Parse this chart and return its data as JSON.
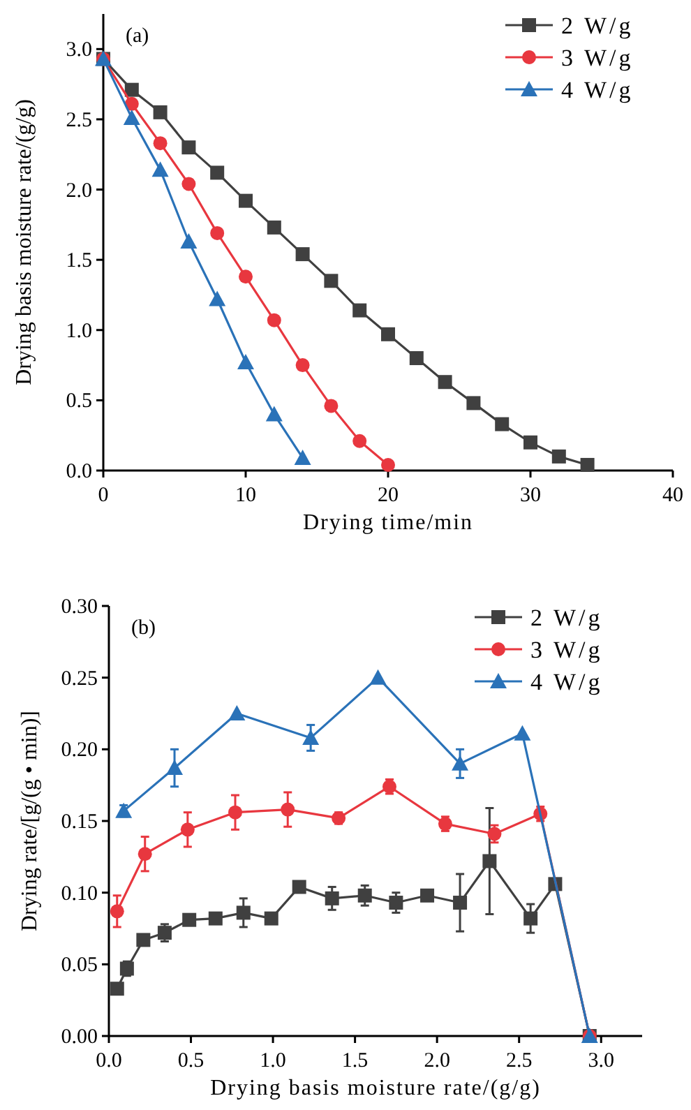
{
  "chart_data": [
    {
      "type": "line",
      "xlabel": "Drying time/min",
      "ylabel": "Drying basis moisture rate/(g/g)",
      "annotations": [
        "(a)"
      ],
      "xlim": [
        0,
        40
      ],
      "xticks": [
        0,
        10,
        20,
        30,
        40
      ],
      "ylim": [
        0,
        3.25
      ],
      "yticks": [
        {
          "value": 0,
          "label": "0.0"
        },
        {
          "value": 0.5,
          "label": "0.5"
        },
        {
          "value": 1,
          "label": "1.0"
        },
        {
          "value": 1.5,
          "label": "1.5"
        },
        {
          "value": 2,
          "label": "2.0"
        },
        {
          "value": 2.5,
          "label": "2.5"
        },
        {
          "value": 3,
          "label": "3.0"
        }
      ],
      "grid": false,
      "legend": "top right",
      "series": [
        {
          "name": "2 W/g",
          "color": "#404040",
          "marker": "square",
          "x": [
            0,
            2,
            4,
            6,
            8,
            10,
            12,
            14,
            16,
            18,
            20,
            22,
            24,
            26,
            28,
            30,
            32,
            34
          ],
          "values": [
            2.93,
            2.71,
            2.55,
            2.3,
            2.12,
            1.92,
            1.73,
            1.54,
            1.35,
            1.14,
            0.97,
            0.8,
            0.63,
            0.48,
            0.33,
            0.2,
            0.1,
            0.04
          ]
        },
        {
          "name": "3 W/g",
          "color": "#e8373f",
          "marker": "circle",
          "x": [
            0,
            2,
            4,
            6,
            8,
            10,
            12,
            14,
            16,
            18,
            20
          ],
          "values": [
            2.93,
            2.61,
            2.33,
            2.04,
            1.69,
            1.38,
            1.07,
            0.75,
            0.46,
            0.21,
            0.04
          ]
        },
        {
          "name": "4 W/g",
          "color": "#2a72b8",
          "marker": "triangle",
          "x": [
            0,
            2,
            4,
            6,
            8,
            10,
            12,
            14
          ],
          "values": [
            2.93,
            2.51,
            2.14,
            1.63,
            1.22,
            0.77,
            0.4,
            0.09
          ]
        }
      ]
    },
    {
      "type": "line",
      "xlabel": "Drying basis moisture rate/(g/g)",
      "ylabel": "Drying rate/[g/(g • min)]",
      "annotations": [
        "(b)"
      ],
      "xlim": [
        0,
        3.25
      ],
      "xticks": [
        {
          "value": 0,
          "label": "0.0"
        },
        {
          "value": 0.5,
          "label": "0.5"
        },
        {
          "value": 1,
          "label": "1.0"
        },
        {
          "value": 1.5,
          "label": "1.5"
        },
        {
          "value": 2,
          "label": "2.0"
        },
        {
          "value": 2.5,
          "label": "2.5"
        },
        {
          "value": 3,
          "label": "3.0"
        }
      ],
      "ylim": [
        0,
        0.3
      ],
      "yticks": [
        {
          "value": 0,
          "label": "0.00"
        },
        {
          "value": 0.05,
          "label": "0.05"
        },
        {
          "value": 0.1,
          "label": "0.10"
        },
        {
          "value": 0.15,
          "label": "0.15"
        },
        {
          "value": 0.2,
          "label": "0.20"
        },
        {
          "value": 0.25,
          "label": "0.25"
        },
        {
          "value": 0.3,
          "label": "0.30"
        }
      ],
      "grid": false,
      "legend": "top right",
      "series": [
        {
          "name": "2 W/g",
          "color": "#404040",
          "marker": "square",
          "x": [
            0.05,
            0.11,
            0.21,
            0.34,
            0.49,
            0.65,
            0.82,
            0.99,
            1.16,
            1.36,
            1.56,
            1.75,
            1.94,
            2.14,
            2.32,
            2.57,
            2.72,
            2.93
          ],
          "values": [
            0.033,
            0.047,
            0.067,
            0.072,
            0.081,
            0.082,
            0.086,
            0.082,
            0.104,
            0.096,
            0.098,
            0.093,
            0.098,
            0.093,
            0.122,
            0.082,
            0.106,
            0
          ],
          "errors": [
            null,
            0.005,
            null,
            0.006,
            null,
            null,
            0.01,
            null,
            null,
            0.008,
            0.007,
            0.007,
            null,
            0.02,
            0.037,
            0.01,
            null,
            null
          ]
        },
        {
          "name": "3 W/g",
          "color": "#e8373f",
          "marker": "circle",
          "x": [
            0.05,
            0.22,
            0.48,
            0.77,
            1.09,
            1.4,
            1.71,
            2.05,
            2.35,
            2.63,
            2.93
          ],
          "values": [
            0.087,
            0.127,
            0.144,
            0.156,
            0.158,
            0.152,
            0.174,
            0.148,
            0.141,
            0.155,
            0
          ],
          "errors": [
            0.011,
            0.012,
            0.012,
            0.012,
            0.012,
            0.004,
            0.005,
            0.005,
            0.006,
            0.005,
            null
          ]
        },
        {
          "name": "4 W/g",
          "color": "#2a72b8",
          "marker": "triangle",
          "x": [
            0.09,
            0.4,
            0.78,
            1.23,
            1.64,
            2.14,
            2.52,
            2.93
          ],
          "values": [
            0.157,
            0.187,
            0.225,
            0.208,
            0.25,
            0.19,
            0.211,
            0
          ],
          "errors": [
            0.004,
            0.013,
            null,
            0.009,
            null,
            0.01,
            null,
            null
          ]
        }
      ]
    }
  ]
}
